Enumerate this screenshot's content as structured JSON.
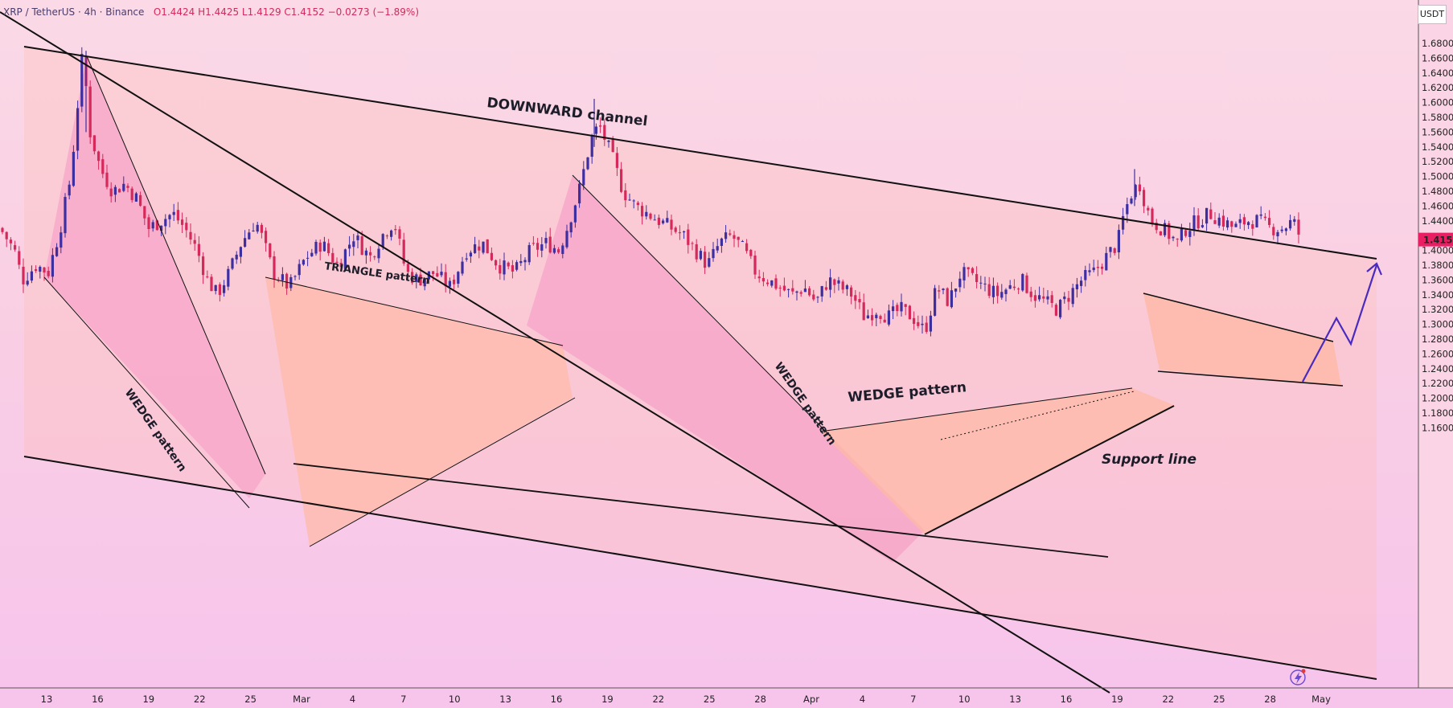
{
  "header": {
    "symbol": "XRP / TetherUS · 4h · Binance",
    "ohlc": "O1.4424  H1.4425  L1.4129  C1.4152  −0.0273 (−1.89%)"
  },
  "price_axis": {
    "unit": "USDT",
    "last_price": "1.4152",
    "last_price_color": "#e91e63"
  },
  "colors": {
    "bull": "#3d2fa0",
    "bear": "#d6285a",
    "shape_fill": "#ffb9a6",
    "wedge_fill": "#f6a3c7",
    "arrow": "#4a2bc0",
    "line": "#111111"
  },
  "icons": {
    "flash": "lightning-icon"
  },
  "chart_data": {
    "type": "candlestick",
    "title": "",
    "xlabel": "",
    "ylabel": "",
    "ylim": [
      1.15,
      1.72
    ],
    "x_ticks": [
      "13",
      "16",
      "19",
      "22",
      "25",
      "Mar",
      "4",
      "7",
      "10",
      "13",
      "16",
      "19",
      "22",
      "25",
      "28",
      "Apr",
      "4",
      "7",
      "10",
      "13",
      "16",
      "19",
      "22",
      "25",
      "28",
      "May"
    ],
    "y_ticks": [
      "1.6800",
      "1.6600",
      "1.6400",
      "1.6200",
      "1.6000",
      "1.5800",
      "1.5600",
      "1.5400",
      "1.5200",
      "1.5000",
      "1.4800",
      "1.4600",
      "1.4400",
      "1.4000",
      "1.3800",
      "1.3600",
      "1.3400",
      "1.3200",
      "1.3000",
      "1.2800",
      "1.2600",
      "1.2400",
      "1.2200",
      "1.2000",
      "1.1800",
      "1.1600"
    ],
    "close_path": [
      [
        0,
        1.43
      ],
      [
        18,
        1.4
      ],
      [
        28,
        1.36
      ],
      [
        45,
        1.38
      ],
      [
        60,
        1.37
      ],
      [
        75,
        1.43
      ],
      [
        88,
        1.5
      ],
      [
        103,
        1.67
      ],
      [
        112,
        1.56
      ],
      [
        125,
        1.51
      ],
      [
        140,
        1.48
      ],
      [
        155,
        1.49
      ],
      [
        170,
        1.47
      ],
      [
        185,
        1.43
      ],
      [
        200,
        1.44
      ],
      [
        215,
        1.45
      ],
      [
        230,
        1.43
      ],
      [
        245,
        1.4
      ],
      [
        258,
        1.36
      ],
      [
        270,
        1.34
      ],
      [
        285,
        1.37
      ],
      [
        300,
        1.41
      ],
      [
        318,
        1.44
      ],
      [
        325,
        1.42
      ],
      [
        340,
        1.37
      ],
      [
        360,
        1.35
      ],
      [
        380,
        1.39
      ],
      [
        400,
        1.41
      ],
      [
        420,
        1.38
      ],
      [
        440,
        1.42
      ],
      [
        460,
        1.39
      ],
      [
        475,
        1.42
      ],
      [
        490,
        1.44
      ],
      [
        505,
        1.37
      ],
      [
        520,
        1.36
      ],
      [
        540,
        1.37
      ],
      [
        560,
        1.35
      ],
      [
        580,
        1.4
      ],
      [
        600,
        1.41
      ],
      [
        620,
        1.38
      ],
      [
        640,
        1.37
      ],
      [
        660,
        1.4
      ],
      [
        680,
        1.41
      ],
      [
        695,
        1.4
      ],
      [
        705,
        1.43
      ],
      [
        720,
        1.48
      ],
      [
        735,
        1.55
      ],
      [
        745,
        1.57
      ],
      [
        760,
        1.53
      ],
      [
        775,
        1.48
      ],
      [
        790,
        1.46
      ],
      [
        805,
        1.45
      ],
      [
        820,
        1.44
      ],
      [
        835,
        1.43
      ],
      [
        850,
        1.42
      ],
      [
        865,
        1.4
      ],
      [
        880,
        1.38
      ],
      [
        895,
        1.41
      ],
      [
        910,
        1.42
      ],
      [
        925,
        1.4
      ],
      [
        940,
        1.37
      ],
      [
        955,
        1.36
      ],
      [
        970,
        1.35
      ],
      [
        985,
        1.34
      ],
      [
        1000,
        1.35
      ],
      [
        1015,
        1.33
      ],
      [
        1030,
        1.36
      ],
      [
        1045,
        1.35
      ],
      [
        1060,
        1.34
      ],
      [
        1075,
        1.31
      ],
      [
        1090,
        1.32
      ],
      [
        1105,
        1.31
      ],
      [
        1120,
        1.32
      ],
      [
        1135,
        1.31
      ],
      [
        1150,
        1.29
      ],
      [
        1165,
        1.35
      ],
      [
        1180,
        1.33
      ],
      [
        1195,
        1.37
      ],
      [
        1210,
        1.36
      ],
      [
        1225,
        1.35
      ],
      [
        1240,
        1.34
      ],
      [
        1255,
        1.35
      ],
      [
        1270,
        1.36
      ],
      [
        1285,
        1.34
      ],
      [
        1300,
        1.33
      ],
      [
        1315,
        1.32
      ],
      [
        1330,
        1.34
      ],
      [
        1345,
        1.36
      ],
      [
        1360,
        1.37
      ],
      [
        1375,
        1.39
      ],
      [
        1390,
        1.41
      ],
      [
        1398,
        1.45
      ],
      [
        1408,
        1.48
      ],
      [
        1418,
        1.49
      ],
      [
        1425,
        1.46
      ],
      [
        1432,
        1.44
      ],
      [
        1445,
        1.43
      ],
      [
        1455,
        1.42
      ],
      [
        1465,
        1.41
      ],
      [
        1475,
        1.43
      ],
      [
        1490,
        1.44
      ],
      [
        1505,
        1.45
      ],
      [
        1520,
        1.44
      ],
      [
        1535,
        1.43
      ],
      [
        1550,
        1.44
      ],
      [
        1565,
        1.44
      ],
      [
        1580,
        1.43
      ],
      [
        1595,
        1.43
      ],
      [
        1608,
        1.44
      ],
      [
        1618,
        1.415
      ]
    ],
    "annotations": [
      {
        "text": "DOWNWARD channel"
      },
      {
        "text": "TRIANGLE pattern"
      },
      {
        "text": "WEDGE pattern"
      },
      {
        "text": "WEDGE pattern"
      },
      {
        "text": "WEDGE pattern"
      },
      {
        "text": "Support line"
      }
    ]
  }
}
